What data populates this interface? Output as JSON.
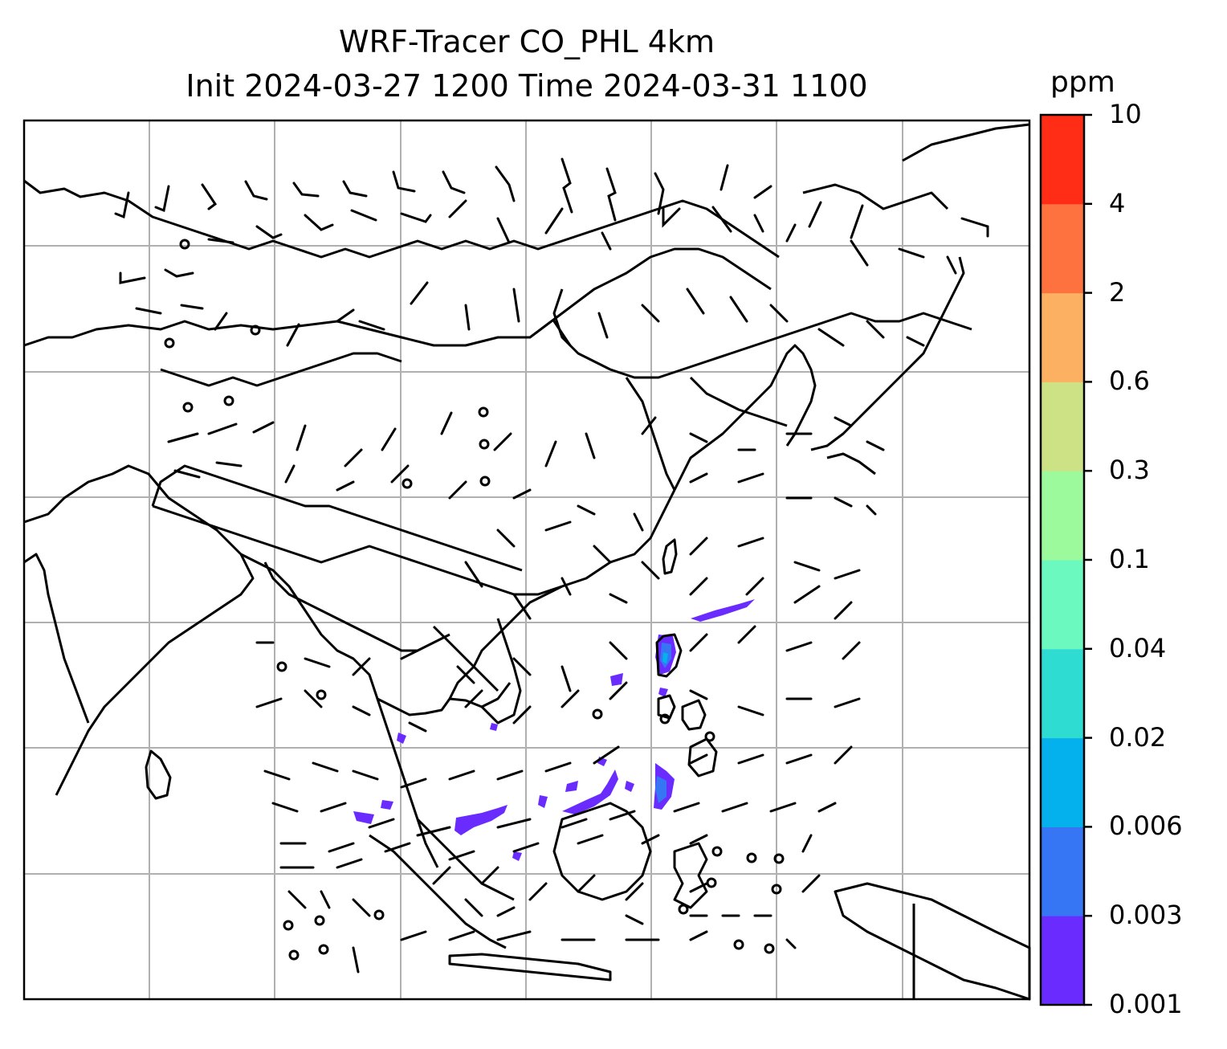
{
  "title": {
    "line1": "WRF-Tracer CO_PHL 4km",
    "line2": "Init 2024-03-27 1200 Time 2024-03-31 1100"
  },
  "colorbar": {
    "unit": "ppm",
    "levels": [
      "0.001",
      "0.003",
      "0.006",
      "0.02",
      "0.04",
      "0.1",
      "0.3",
      "0.6",
      "2",
      "4",
      "10"
    ],
    "colors": [
      "#6a2bff",
      "#3676f4",
      "#05b1ec",
      "#2fdcd2",
      "#6cf9bf",
      "#9cfa9c",
      "#cde285",
      "#fcb062",
      "#fe7240",
      "#ff2d16"
    ]
  },
  "map": {
    "projection": "lat-lon",
    "gridlines": true,
    "coastlines": true,
    "wind_barbs": true,
    "plume_color_dominant": "#6a2bff"
  }
}
